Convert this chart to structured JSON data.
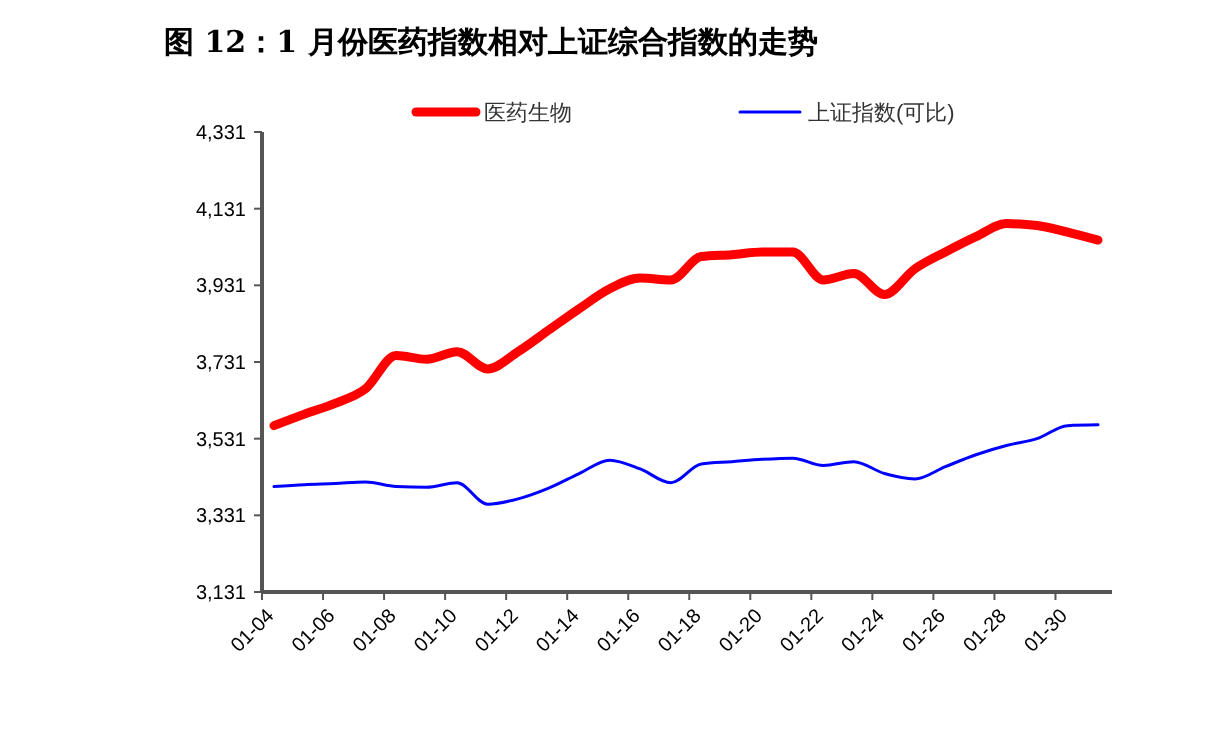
{
  "chart_data": {
    "type": "line",
    "title": "图 12：1 月份医药指数相对上证综合指数的走势",
    "categories": [
      "01-04",
      null,
      "01-06",
      null,
      "01-08",
      null,
      "01-10",
      null,
      "01-12",
      null,
      "01-14",
      null,
      "01-16",
      null,
      "01-18",
      null,
      "01-20",
      null,
      "01-22",
      null,
      "01-24",
      null,
      "01-26",
      null,
      "01-28",
      null,
      "01-30",
      null
    ],
    "series": [
      {
        "name": "医药生物",
        "color": "#ff0000",
        "values": [
          3565,
          3595,
          3623,
          3661,
          3748,
          3738,
          3758,
          3713,
          3758,
          3814,
          3870,
          3922,
          3950,
          3945,
          4006,
          4011,
          4018,
          4018,
          3945,
          3962,
          3907,
          3974,
          4018,
          4058,
          4092,
          4087,
          4070,
          4049
        ]
      },
      {
        "name": "上证指数(可比)",
        "color": "#0000ff",
        "values": [
          3406,
          3411,
          3414,
          3418,
          3406,
          3404,
          3416,
          3360,
          3374,
          3402,
          3440,
          3475,
          3452,
          3416,
          3465,
          3471,
          3477,
          3480,
          3461,
          3471,
          3440,
          3426,
          3458,
          3489,
          3513,
          3531,
          3565,
          3567
        ]
      }
    ],
    "ylim": [
      3131,
      4331
    ],
    "yticks": [
      {
        "value": 3131,
        "label": "3,131"
      },
      {
        "value": 3331,
        "label": "3,331"
      },
      {
        "value": 3531,
        "label": "3,531"
      },
      {
        "value": 3731,
        "label": "3,731"
      },
      {
        "value": 3931,
        "label": "3,931"
      },
      {
        "value": 4131,
        "label": "4,131"
      },
      {
        "value": 4331,
        "label": "4,331"
      }
    ],
    "legend": "top",
    "grid": false
  }
}
